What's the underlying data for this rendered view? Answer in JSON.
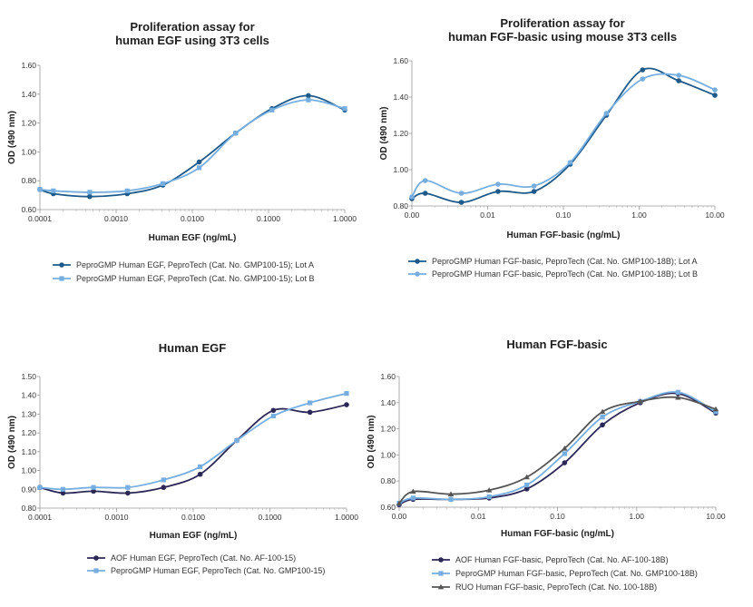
{
  "chart_data": [
    {
      "type": "line",
      "xscale": "log",
      "title_lines": [
        "Proliferation assay for",
        "human EGF using 3T3 cells"
      ],
      "xlabel": "Human EGF (ng/mL)",
      "ylabel": "OD (490 nm)",
      "xlim": [
        0.0001,
        1
      ],
      "ylim": [
        0.6,
        1.6
      ],
      "xticks": [
        0.0001,
        0.001,
        0.01,
        0.1,
        1
      ],
      "xtick_labels": [
        "0.0001",
        "0.0010",
        "0.0100",
        "0.1000",
        "1.0000"
      ],
      "yticks": [
        0.6,
        0.8,
        1.0,
        1.2,
        1.4,
        1.6
      ],
      "ytick_labels": [
        "0.60",
        "0.80",
        "1.00",
        "1.20",
        "1.40",
        "1.60"
      ],
      "series": [
        {
          "name": "PeproGMP Human EGF, PeproTech (Cat. No. GMP100-15); Lot A",
          "color": "#1d5a8a",
          "marker": "circle",
          "x": [
            0.0001,
            0.00015,
            0.00045,
            0.0014,
            0.0041,
            0.0123,
            0.037,
            0.111,
            0.333,
            1.0
          ],
          "y": [
            0.74,
            0.71,
            0.69,
            0.71,
            0.77,
            0.93,
            1.13,
            1.3,
            1.39,
            1.29
          ]
        },
        {
          "name": "PeproGMP Human EGF, PeproTech (Cat. No. GMP100-15); Lot B",
          "color": "#76aee0",
          "marker": "square",
          "x": [
            0.0001,
            0.00015,
            0.00045,
            0.0014,
            0.0041,
            0.0123,
            0.037,
            0.111,
            0.333,
            1.0
          ],
          "y": [
            0.74,
            0.73,
            0.72,
            0.73,
            0.78,
            0.89,
            1.13,
            1.29,
            1.36,
            1.3
          ]
        }
      ]
    },
    {
      "type": "line",
      "xscale": "log",
      "title_lines": [
        "Proliferation assay for",
        "human FGF-basic using mouse 3T3 cells"
      ],
      "xlabel": "Human FGF-basic (ng/mL)",
      "ylabel": "OD (490 nm)",
      "xlim": [
        0.001,
        10
      ],
      "ylim": [
        0.8,
        1.6
      ],
      "xticks": [
        0.001,
        0.01,
        0.1,
        1,
        10
      ],
      "xtick_labels": [
        "0.00",
        "0.01",
        "0.10",
        "1.00",
        "10.00"
      ],
      "yticks": [
        0.8,
        1.0,
        1.2,
        1.4,
        1.6
      ],
      "ytick_labels": [
        "0.80",
        "1.00",
        "1.20",
        "1.40",
        "1.60"
      ],
      "series": [
        {
          "name": "PeproGMP Human FGF-basic, PeproTech (Cat. No. GMP100-18B); Lot A",
          "color": "#1d5a8a",
          "marker": "circle",
          "x": [
            0.001,
            0.0015,
            0.0045,
            0.0137,
            0.041,
            0.123,
            0.37,
            1.11,
            3.33,
            10.0
          ],
          "y": [
            0.84,
            0.87,
            0.82,
            0.88,
            0.88,
            1.03,
            1.3,
            1.55,
            1.49,
            1.41
          ]
        },
        {
          "name": "PeproGMP Human FGF-basic, PeproTech (Cat. No. GMP100-18B); Lot B",
          "color": "#76aee0",
          "marker": "circle",
          "x": [
            0.001,
            0.0015,
            0.0045,
            0.0137,
            0.041,
            0.123,
            0.37,
            1.11,
            3.33,
            10.0
          ],
          "y": [
            0.85,
            0.94,
            0.87,
            0.92,
            0.91,
            1.04,
            1.31,
            1.5,
            1.52,
            1.44
          ]
        }
      ]
    },
    {
      "type": "line",
      "xscale": "log",
      "title_lines": [
        "Human EGF"
      ],
      "xlabel": "Human EGF (ng/mL)",
      "ylabel": "OD (490 nm)",
      "xlim": [
        0.0001,
        1
      ],
      "ylim": [
        0.8,
        1.5
      ],
      "xticks": [
        0.0001,
        0.001,
        0.01,
        0.1,
        1
      ],
      "xtick_labels": [
        "0.0001",
        "0.0010",
        "0.0100",
        "0.1000",
        "1.0000"
      ],
      "yticks": [
        0.8,
        0.9,
        1.0,
        1.1,
        1.2,
        1.3,
        1.4,
        1.5
      ],
      "ytick_labels": [
        "0.80",
        "0.90",
        "1.00",
        "1.10",
        "1.20",
        "1.30",
        "1.40",
        "1.50"
      ],
      "series": [
        {
          "name": "AOF Human EGF, PeproTech (Cat. No. AF-100-15)",
          "color": "#2b2757",
          "marker": "circle",
          "x": [
            0.0001,
            0.0002,
            0.0005,
            0.0014,
            0.0041,
            0.0123,
            0.037,
            0.111,
            0.333,
            1.0
          ],
          "y": [
            0.91,
            0.88,
            0.89,
            0.88,
            0.91,
            0.98,
            1.16,
            1.32,
            1.31,
            1.35
          ]
        },
        {
          "name": "PeproGMP Human EGF, PeproTech (Cat. No. GMP100-15)",
          "color": "#76aee0",
          "marker": "square",
          "x": [
            0.0001,
            0.0002,
            0.0005,
            0.0014,
            0.0041,
            0.0123,
            0.037,
            0.111,
            0.333,
            1.0
          ],
          "y": [
            0.91,
            0.9,
            0.91,
            0.91,
            0.95,
            1.02,
            1.16,
            1.29,
            1.36,
            1.41
          ]
        }
      ]
    },
    {
      "type": "line",
      "xscale": "log",
      "title_lines": [
        "Human FGF-basic"
      ],
      "xlabel": "Human FGF-basic (ng/mL)",
      "ylabel": "OD (490 nm)",
      "xlim": [
        0.001,
        10
      ],
      "ylim": [
        0.6,
        1.6
      ],
      "xticks": [
        0.001,
        0.01,
        0.1,
        1,
        10
      ],
      "xtick_labels": [
        "0.00",
        "0.01",
        "0.10",
        "1.00",
        "10.00"
      ],
      "yticks": [
        0.6,
        0.8,
        1.0,
        1.2,
        1.4,
        1.6
      ],
      "ytick_labels": [
        "0.60",
        "0.80",
        "1.00",
        "1.20",
        "1.40",
        "1.60"
      ],
      "series": [
        {
          "name": "AOF Human FGF-basic, PeproTech (Cat. No. AF-100-18B)",
          "color": "#2b2757",
          "marker": "circle",
          "x": [
            0.001,
            0.0015,
            0.0045,
            0.0137,
            0.041,
            0.123,
            0.37,
            1.11,
            3.33,
            10.0
          ],
          "y": [
            0.62,
            0.66,
            0.66,
            0.67,
            0.74,
            0.94,
            1.23,
            1.4,
            1.47,
            1.32
          ]
        },
        {
          "name": "PeproGMP Human FGF-basic, PeproTech (Cat. No. GMP100-18B)",
          "color": "#76aee0",
          "marker": "square",
          "x": [
            0.001,
            0.0015,
            0.0045,
            0.0137,
            0.041,
            0.123,
            0.37,
            1.11,
            3.33,
            10.0
          ],
          "y": [
            0.63,
            0.67,
            0.66,
            0.68,
            0.77,
            1.01,
            1.29,
            1.41,
            1.48,
            1.33
          ]
        },
        {
          "name": "RUO Human FGF-basic, PeproTech (Cat. No. 100-18B)",
          "color": "#555555",
          "marker": "triangle",
          "x": [
            0.001,
            0.0015,
            0.0045,
            0.0137,
            0.041,
            0.123,
            0.37,
            1.11,
            3.33,
            10.0
          ],
          "y": [
            0.63,
            0.72,
            0.7,
            0.73,
            0.83,
            1.05,
            1.33,
            1.41,
            1.44,
            1.35
          ]
        }
      ]
    }
  ]
}
